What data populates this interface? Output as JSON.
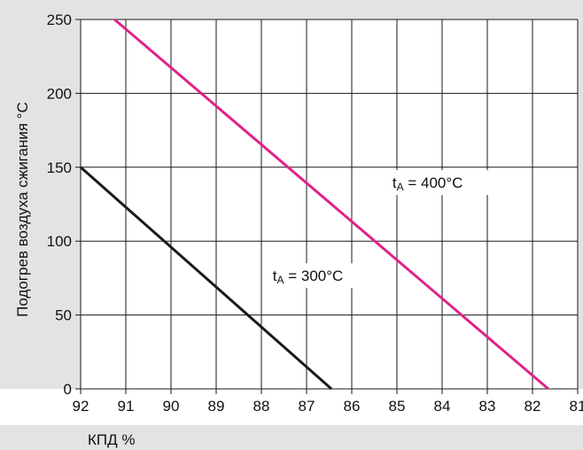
{
  "chart_data": {
    "type": "line",
    "xlabel": "КПД %",
    "ylabel": "Подогрев воздуха сжигания °C",
    "xlim": [
      92,
      81
    ],
    "ylim": [
      0,
      250
    ],
    "x_ticks": [
      92,
      91,
      90,
      89,
      88,
      87,
      86,
      85,
      84,
      83,
      82,
      81
    ],
    "y_ticks": [
      0,
      50,
      100,
      150,
      200,
      250
    ],
    "grid": true,
    "legend": "none",
    "series": [
      {
        "label_prefix": "t",
        "label_sub": "A",
        "label_value": "= 300°C",
        "color": "#1a1a1a",
        "x": [
          92,
          86.45
        ],
        "y": [
          150,
          0
        ],
        "label_at": [
          87.75,
          73
        ]
      },
      {
        "label_prefix": "t",
        "label_sub": "A",
        "label_value": "= 400°C",
        "color": "#e0218a",
        "x": [
          91.25,
          81.65
        ],
        "y": [
          250,
          0
        ],
        "label_at": [
          85.1,
          136
        ]
      }
    ]
  },
  "colors": {
    "plot_background": "#ffffff",
    "frame_background": "#e3e3e3",
    "grid": "#1a1a1a"
  }
}
